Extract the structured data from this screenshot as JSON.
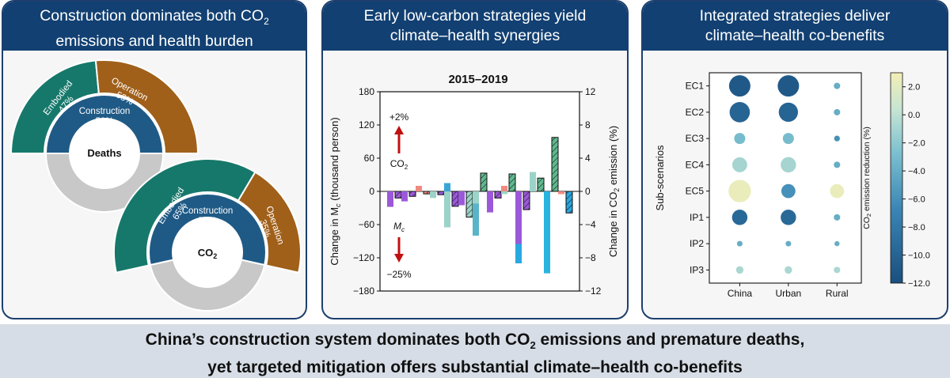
{
  "panel1": {
    "title_line1": "Construction dominates both CO",
    "title_line1_sub": "2",
    "title_line2": "emissions and health burden",
    "deaths": {
      "center_label": "Deaths",
      "inner_label": "Construction",
      "inner_value": "50%",
      "inner_fraction": 0.5,
      "embodied_label": "Embodied",
      "embodied_value": "47%",
      "operation_label": "Operation",
      "operation_value": "53%"
    },
    "co2": {
      "center_label": "CO",
      "center_sub": "2",
      "inner_label": "Construction",
      "inner_value": "57%",
      "inner_fraction": 0.57,
      "embodied_label": "Embodied",
      "embodied_value": "65%",
      "operation_label": "Operation",
      "operation_value": "35%"
    },
    "colors": {
      "embodied": "#16786b",
      "operation": "#a0601a",
      "construction": "#1f5a86",
      "other": "#c8c8c8"
    }
  },
  "panel2": {
    "title_line1": "Early low-carbon strategies yield",
    "title_line2": "climate–health synergies",
    "chart_title": "2015–2019",
    "ylabel_left": "Change in M",
    "ylabel_left_sub": "c",
    "ylabel_left_tail": " (thousand person)",
    "ylabel_right": "Change in CO",
    "ylabel_right_sub": "2",
    "ylabel_right_tail": " emission (%)",
    "left_ticks": [
      "180",
      "120",
      "60",
      "0",
      "−60",
      "−120",
      "−180"
    ],
    "right_ticks": [
      "12",
      "8",
      "4",
      "0",
      "−4",
      "−8",
      "−12"
    ],
    "annot_co2_pct": "+2%",
    "annot_co2_label": "CO",
    "annot_co2_sub": "2",
    "annot_mc_label": "M",
    "annot_mc_sub": "c",
    "annot_mc_pct": "−25%"
  },
  "chart_data": {
    "type": "bar",
    "title": "2015–2019",
    "ylim_left": [
      -180,
      180
    ],
    "ylim_right": [
      -12,
      12
    ],
    "series": [
      {
        "values": [
          -28,
          -18,
          10,
          -10,
          15,
          -25,
          -22,
          -38,
          10,
          -95,
          35,
          -148,
          -5
        ]
      },
      {
        "values": [
          0,
          0,
          0,
          -12,
          -65,
          0,
          -80,
          0,
          -5,
          -130,
          0,
          0,
          0
        ]
      },
      {
        "values": [
          -0.8,
          -0.6,
          -0.3,
          -0.4,
          -1.8,
          -3.1,
          2.2,
          -0.8,
          2.1,
          -2.2,
          1.6,
          6.5,
          -2.6
        ]
      }
    ]
  },
  "panel3": {
    "title_line1": "Integrated strategies deliver",
    "title_line2": "climate–health co-benefits",
    "ylabel": "Sub-scenarios",
    "rows": [
      "EC1",
      "EC2",
      "EC3",
      "EC4",
      "EC5",
      "IP1",
      "IP2",
      "IP3"
    ],
    "columns": [
      "China",
      "Urban",
      "Rural"
    ],
    "colorbar_label_pre": "CO",
    "colorbar_label_sub": "2",
    "colorbar_label_post": " emission reduction (%)",
    "colorbar_ticks": [
      "2.0",
      "0.0",
      "−2.0",
      "−4.0",
      "−6.0",
      "−8.0",
      "−10.0",
      "−12.0"
    ],
    "colorbar_range": [
      -12,
      3
    ],
    "cells": [
      [
        {
          "value": -11.0,
          "size": 1.0
        },
        {
          "value": -11.0,
          "size": 1.0
        },
        {
          "value": -4.0,
          "size": 0.3
        }
      ],
      [
        {
          "value": -10.0,
          "size": 0.95
        },
        {
          "value": -10.0,
          "size": 0.9
        },
        {
          "value": -4.0,
          "size": 0.3
        }
      ],
      [
        {
          "value": -3.0,
          "size": 0.52
        },
        {
          "value": -3.0,
          "size": 0.52
        },
        {
          "value": -6.0,
          "size": 0.27
        }
      ],
      [
        {
          "value": -1.0,
          "size": 0.7
        },
        {
          "value": -1.0,
          "size": 0.72
        },
        {
          "value": -4.0,
          "size": 0.3
        }
      ],
      [
        {
          "value": 2.5,
          "size": 1.05
        },
        {
          "value": -6.0,
          "size": 0.66
        },
        {
          "value": 2.5,
          "size": 0.66
        }
      ],
      [
        {
          "value": -9.5,
          "size": 0.72
        },
        {
          "value": -9.5,
          "size": 0.72
        },
        {
          "value": -4.0,
          "size": 0.3
        }
      ],
      [
        {
          "value": -4.0,
          "size": 0.26
        },
        {
          "value": -4.0,
          "size": 0.26
        },
        {
          "value": -4.0,
          "size": 0.24
        }
      ],
      [
        {
          "value": -0.8,
          "size": 0.35
        },
        {
          "value": -0.8,
          "size": 0.35
        },
        {
          "value": -0.8,
          "size": 0.3
        }
      ]
    ]
  },
  "footer": {
    "line1_pre": "China’s construction system dominates both CO",
    "line1_sub": "2",
    "line1_post": " emissions and premature deaths,",
    "line2": "yet targeted mitigation offers substantial climate–health co-benefits"
  }
}
